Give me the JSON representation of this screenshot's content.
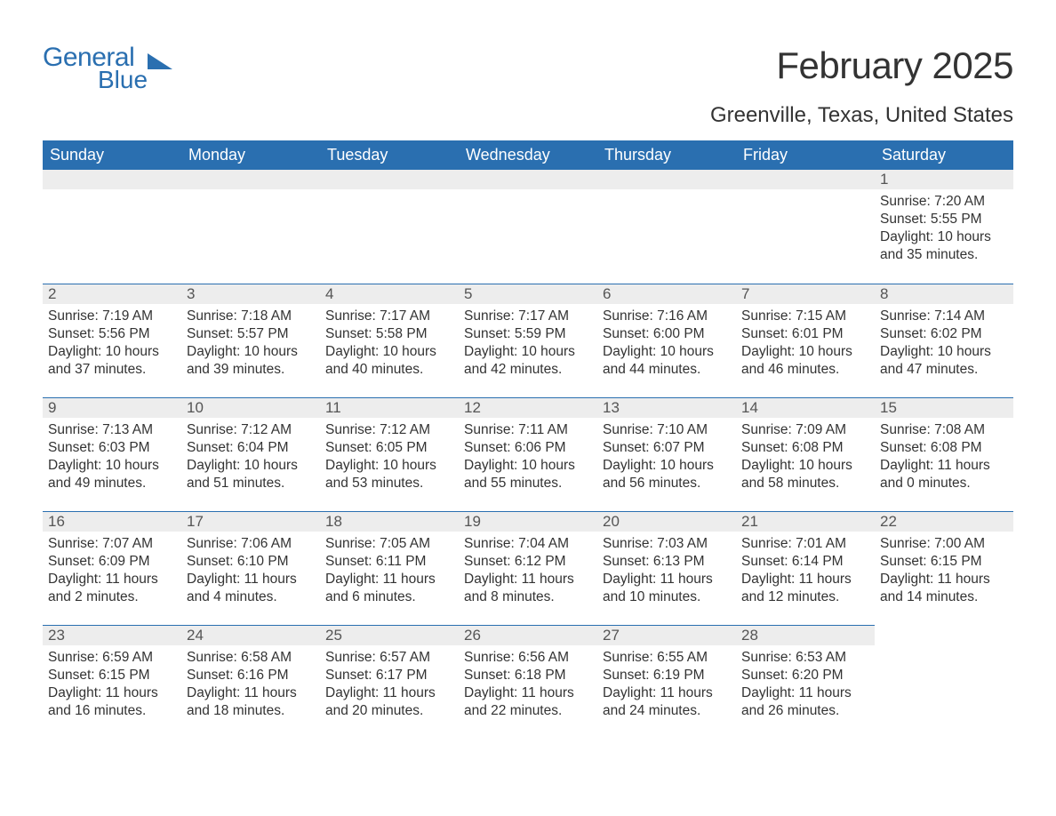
{
  "logo": {
    "word1": "General",
    "word2": "Blue",
    "brand_color": "#2a6fb0"
  },
  "title": "February 2025",
  "location": "Greenville, Texas, United States",
  "colors": {
    "header_bg": "#2a6fb0",
    "header_text": "#ffffff",
    "daynum_bg": "#ededed",
    "daynum_border": "#2a6fb0",
    "text": "#333333",
    "background": "#ffffff"
  },
  "layout": {
    "columns": 7,
    "rows": 5,
    "first_weekday_index": 6
  },
  "weekdays": [
    "Sunday",
    "Monday",
    "Tuesday",
    "Wednesday",
    "Thursday",
    "Friday",
    "Saturday"
  ],
  "days": [
    {
      "n": "1",
      "sunrise": "Sunrise: 7:20 AM",
      "sunset": "Sunset: 5:55 PM",
      "daylight": "Daylight: 10 hours and 35 minutes."
    },
    {
      "n": "2",
      "sunrise": "Sunrise: 7:19 AM",
      "sunset": "Sunset: 5:56 PM",
      "daylight": "Daylight: 10 hours and 37 minutes."
    },
    {
      "n": "3",
      "sunrise": "Sunrise: 7:18 AM",
      "sunset": "Sunset: 5:57 PM",
      "daylight": "Daylight: 10 hours and 39 minutes."
    },
    {
      "n": "4",
      "sunrise": "Sunrise: 7:17 AM",
      "sunset": "Sunset: 5:58 PM",
      "daylight": "Daylight: 10 hours and 40 minutes."
    },
    {
      "n": "5",
      "sunrise": "Sunrise: 7:17 AM",
      "sunset": "Sunset: 5:59 PM",
      "daylight": "Daylight: 10 hours and 42 minutes."
    },
    {
      "n": "6",
      "sunrise": "Sunrise: 7:16 AM",
      "sunset": "Sunset: 6:00 PM",
      "daylight": "Daylight: 10 hours and 44 minutes."
    },
    {
      "n": "7",
      "sunrise": "Sunrise: 7:15 AM",
      "sunset": "Sunset: 6:01 PM",
      "daylight": "Daylight: 10 hours and 46 minutes."
    },
    {
      "n": "8",
      "sunrise": "Sunrise: 7:14 AM",
      "sunset": "Sunset: 6:02 PM",
      "daylight": "Daylight: 10 hours and 47 minutes."
    },
    {
      "n": "9",
      "sunrise": "Sunrise: 7:13 AM",
      "sunset": "Sunset: 6:03 PM",
      "daylight": "Daylight: 10 hours and 49 minutes."
    },
    {
      "n": "10",
      "sunrise": "Sunrise: 7:12 AM",
      "sunset": "Sunset: 6:04 PM",
      "daylight": "Daylight: 10 hours and 51 minutes."
    },
    {
      "n": "11",
      "sunrise": "Sunrise: 7:12 AM",
      "sunset": "Sunset: 6:05 PM",
      "daylight": "Daylight: 10 hours and 53 minutes."
    },
    {
      "n": "12",
      "sunrise": "Sunrise: 7:11 AM",
      "sunset": "Sunset: 6:06 PM",
      "daylight": "Daylight: 10 hours and 55 minutes."
    },
    {
      "n": "13",
      "sunrise": "Sunrise: 7:10 AM",
      "sunset": "Sunset: 6:07 PM",
      "daylight": "Daylight: 10 hours and 56 minutes."
    },
    {
      "n": "14",
      "sunrise": "Sunrise: 7:09 AM",
      "sunset": "Sunset: 6:08 PM",
      "daylight": "Daylight: 10 hours and 58 minutes."
    },
    {
      "n": "15",
      "sunrise": "Sunrise: 7:08 AM",
      "sunset": "Sunset: 6:08 PM",
      "daylight": "Daylight: 11 hours and 0 minutes."
    },
    {
      "n": "16",
      "sunrise": "Sunrise: 7:07 AM",
      "sunset": "Sunset: 6:09 PM",
      "daylight": "Daylight: 11 hours and 2 minutes."
    },
    {
      "n": "17",
      "sunrise": "Sunrise: 7:06 AM",
      "sunset": "Sunset: 6:10 PM",
      "daylight": "Daylight: 11 hours and 4 minutes."
    },
    {
      "n": "18",
      "sunrise": "Sunrise: 7:05 AM",
      "sunset": "Sunset: 6:11 PM",
      "daylight": "Daylight: 11 hours and 6 minutes."
    },
    {
      "n": "19",
      "sunrise": "Sunrise: 7:04 AM",
      "sunset": "Sunset: 6:12 PM",
      "daylight": "Daylight: 11 hours and 8 minutes."
    },
    {
      "n": "20",
      "sunrise": "Sunrise: 7:03 AM",
      "sunset": "Sunset: 6:13 PM",
      "daylight": "Daylight: 11 hours and 10 minutes."
    },
    {
      "n": "21",
      "sunrise": "Sunrise: 7:01 AM",
      "sunset": "Sunset: 6:14 PM",
      "daylight": "Daylight: 11 hours and 12 minutes."
    },
    {
      "n": "22",
      "sunrise": "Sunrise: 7:00 AM",
      "sunset": "Sunset: 6:15 PM",
      "daylight": "Daylight: 11 hours and 14 minutes."
    },
    {
      "n": "23",
      "sunrise": "Sunrise: 6:59 AM",
      "sunset": "Sunset: 6:15 PM",
      "daylight": "Daylight: 11 hours and 16 minutes."
    },
    {
      "n": "24",
      "sunrise": "Sunrise: 6:58 AM",
      "sunset": "Sunset: 6:16 PM",
      "daylight": "Daylight: 11 hours and 18 minutes."
    },
    {
      "n": "25",
      "sunrise": "Sunrise: 6:57 AM",
      "sunset": "Sunset: 6:17 PM",
      "daylight": "Daylight: 11 hours and 20 minutes."
    },
    {
      "n": "26",
      "sunrise": "Sunrise: 6:56 AM",
      "sunset": "Sunset: 6:18 PM",
      "daylight": "Daylight: 11 hours and 22 minutes."
    },
    {
      "n": "27",
      "sunrise": "Sunrise: 6:55 AM",
      "sunset": "Sunset: 6:19 PM",
      "daylight": "Daylight: 11 hours and 24 minutes."
    },
    {
      "n": "28",
      "sunrise": "Sunrise: 6:53 AM",
      "sunset": "Sunset: 6:20 PM",
      "daylight": "Daylight: 11 hours and 26 minutes."
    }
  ]
}
